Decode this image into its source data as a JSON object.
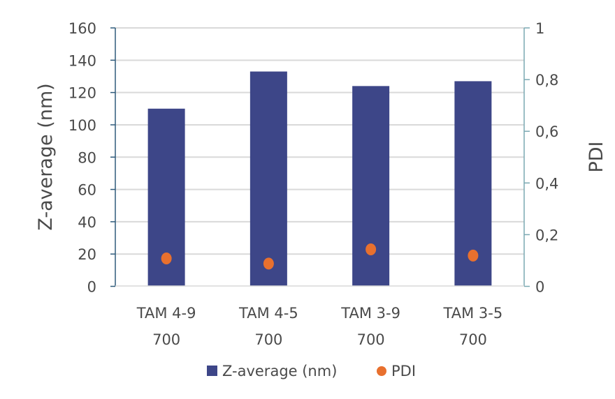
{
  "chart_data": {
    "type": "bar",
    "categories": [
      "TAM 4-9 700",
      "TAM 4-5 700",
      "TAM 3-9 700",
      "TAM 3-5 700"
    ],
    "category_lines": [
      [
        "TAM 4-9",
        "700"
      ],
      [
        "TAM 4-5",
        "700"
      ],
      [
        "TAM 3-9",
        "700"
      ],
      [
        "TAM 3-5",
        "700"
      ]
    ],
    "series": [
      {
        "name": "Z-average (nm)",
        "type": "bar",
        "axis": "left",
        "color": "#3d4688",
        "values": [
          110,
          133,
          124,
          127
        ]
      },
      {
        "name": "PDI",
        "type": "scatter",
        "axis": "right",
        "color": "#e8702e",
        "values": [
          0.108,
          0.088,
          0.143,
          0.119
        ]
      }
    ],
    "ylabel": "Z-average (nm)",
    "ylim": [
      0,
      160
    ],
    "yticks": [
      "0",
      "20",
      "40",
      "60",
      "80",
      "100",
      "120",
      "140",
      "160"
    ],
    "y2label": "PDI",
    "y2lim": [
      0,
      1
    ],
    "y2ticks": [
      "0",
      "0,2",
      "0,4",
      "0,6",
      "0,8",
      "1"
    ],
    "grid": true,
    "legend": "bottom"
  }
}
